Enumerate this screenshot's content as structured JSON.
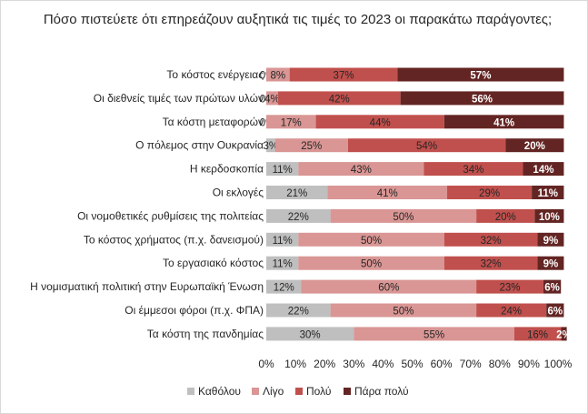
{
  "chart_data": {
    "type": "bar",
    "stacked": true,
    "orientation": "horizontal",
    "title": "Πόσο πιστεύετε ότι επηρεάζουν αυξητικά τις τιμές το 2023 οι παρακάτω παράγοντες;",
    "categories": [
      "Το κόστος ενέργειας",
      "Οι διεθνείς τιμές των πρώτων υλών",
      "Τα κόστη μεταφορών",
      "Ο πόλεμος στην Ουκρανία",
      "Η κερδοσκοπία",
      "Οι εκλογές",
      "Οι νομοθετικές ρυθμίσεις της πολιτείας",
      "Το κόστος χρήματος (π.χ. δανεισμού)",
      "Το εργασιακό κόστος",
      "Η νομισματική πολιτική στην Ευρωπαϊκή Ένωση",
      "Οι έμμεσοι φόροι (π.χ. ΦΠΑ)",
      "Τα κόστη της πανδημίας"
    ],
    "series": [
      {
        "name": "Καθόλου",
        "color": "#bfbfbf",
        "label_color": "#262626",
        "values": [
          0,
          0,
          0,
          3,
          11,
          21,
          22,
          11,
          11,
          12,
          22,
          30
        ]
      },
      {
        "name": "Λίγο",
        "color": "#d99694",
        "label_color": "#262626",
        "values": [
          8,
          4,
          17,
          25,
          43,
          41,
          50,
          50,
          50,
          60,
          50,
          55
        ]
      },
      {
        "name": "Πολύ",
        "color": "#c0504d",
        "label_color": "#262626",
        "values": [
          37,
          42,
          44,
          54,
          34,
          29,
          20,
          32,
          32,
          23,
          24,
          16
        ]
      },
      {
        "name": "Πάρα πολύ",
        "color": "#632523",
        "label_color": "#ffffff",
        "values": [
          57,
          56,
          41,
          20,
          14,
          11,
          10,
          9,
          9,
          6,
          6,
          2
        ]
      }
    ],
    "xlim": [
      0,
      100
    ],
    "xticks": [
      "0%",
      "10%",
      "20%",
      "30%",
      "40%",
      "50%",
      "60%",
      "70%",
      "80%",
      "90%",
      "100%"
    ],
    "value_suffix": "%",
    "grid": false,
    "legend_position": "bottom"
  }
}
